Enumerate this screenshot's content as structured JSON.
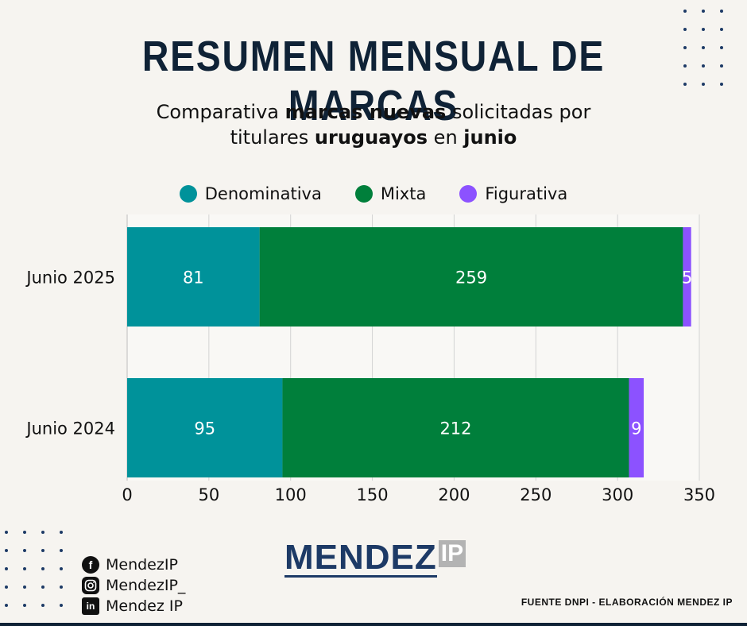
{
  "title": "RESUMEN MENSUAL DE MARCAS",
  "subtitle": {
    "line1_a": "Comparativa ",
    "line1_b": "marcas nuevas",
    "line1_c": " solicitadas por",
    "line2_a": "titulares ",
    "line2_b": "uruguayos",
    "line2_c": " en ",
    "line2_d": "junio"
  },
  "chart_data": {
    "type": "bar",
    "orientation": "horizontal",
    "stacked": true,
    "categories": [
      "Junio 2025",
      "Junio 2024"
    ],
    "series": [
      {
        "name": "Denominativa",
        "color": "#00929a",
        "values": [
          81,
          95
        ]
      },
      {
        "name": "Mixta",
        "color": "#007f3b",
        "values": [
          259,
          212
        ]
      },
      {
        "name": "Figurativa",
        "color": "#8c52ff",
        "values": [
          5,
          9
        ]
      }
    ],
    "xlim": [
      0,
      350
    ],
    "xticks": [
      "0",
      "50",
      "100",
      "150",
      "200",
      "250",
      "300",
      "350"
    ],
    "grid": true,
    "legend_position": "top"
  },
  "social": {
    "facebook": "MendezIP",
    "instagram": "MendezIP_",
    "linkedin": "Mendez IP"
  },
  "logo": {
    "main": "MENDEZ",
    "suffix": "IP"
  },
  "source": "FUENTE DNPI - ELABORACIÓN MENDEZ IP",
  "colors": {
    "navy": "#0f2236",
    "teal": "#00929a",
    "green": "#007f3b",
    "purple": "#8c52ff"
  }
}
